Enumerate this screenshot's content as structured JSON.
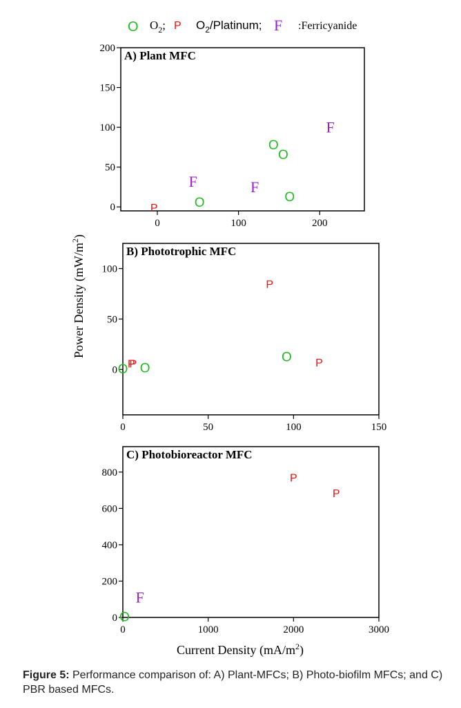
{
  "legend": {
    "o_marker": "O",
    "o_label_base": "O",
    "o_label_sub": "2",
    "o_label_tail": ";",
    "p_marker": "P",
    "p_label_base": "O",
    "p_label_sub": "2",
    "p_label_tail": "/Platinum;",
    "f_marker": "F",
    "f_label": ":Ferricyanide",
    "colors": {
      "O": "#22bb22",
      "P": "#ee1111",
      "F": "#9922cc"
    }
  },
  "ylabel": {
    "base": "Power Density (mW/m",
    "sup": "2",
    "end": ")"
  },
  "xlabel": {
    "base": "Current Density (mA/m",
    "sup": "2",
    "end": ")"
  },
  "caption": {
    "label": "Figure 5:",
    "text": " Performance comparison of: A) Plant-MFCs; B) Photo-biofilm MFCs; and C) PBR based MFCs."
  },
  "chart_data": [
    {
      "type": "scatter",
      "title": "A) Plant MFC",
      "xlim": [
        -45,
        255
      ],
      "ylim": [
        -5,
        200
      ],
      "xticks": [
        0,
        100,
        200
      ],
      "yticks": [
        0,
        50,
        100,
        150,
        200
      ],
      "series": [
        {
          "name": "O",
          "points": [
            [
              52,
              5
            ],
            [
              143,
              77
            ],
            [
              155,
              65
            ],
            [
              163,
              12
            ]
          ]
        },
        {
          "name": "P",
          "points": [
            [
              -4,
              -2
            ]
          ]
        },
        {
          "name": "F",
          "points": [
            [
              44,
              32
            ],
            [
              120,
              25
            ],
            [
              213,
              100
            ]
          ]
        }
      ]
    },
    {
      "type": "scatter",
      "title": "B) Phototrophic  MFC",
      "xlim": [
        0,
        150
      ],
      "ylim": [
        -45,
        125
      ],
      "xticks": [
        0,
        50,
        100,
        150
      ],
      "yticks": [
        0,
        50,
        100
      ],
      "series": [
        {
          "name": "O",
          "points": [
            [
              0,
              0
            ],
            [
              13,
              1
            ],
            [
              96,
              12
            ]
          ]
        },
        {
          "name": "P",
          "points": [
            [
              5,
              5
            ],
            [
              6,
              5
            ],
            [
              86,
              84
            ],
            [
              115,
              6
            ]
          ]
        }
      ]
    },
    {
      "type": "scatter",
      "title": "C) Photobioreactor MFC",
      "xlim": [
        0,
        3000
      ],
      "ylim": [
        0,
        940
      ],
      "xticks": [
        0,
        1000,
        2000,
        3000
      ],
      "yticks": [
        0,
        200,
        400,
        600,
        800
      ],
      "series": [
        {
          "name": "O",
          "points": [
            [
              20,
              0
            ]
          ]
        },
        {
          "name": "P",
          "points": [
            [
              2000,
              765
            ],
            [
              2500,
              680
            ]
          ]
        },
        {
          "name": "F",
          "points": [
            [
              200,
              110
            ]
          ]
        }
      ]
    }
  ]
}
